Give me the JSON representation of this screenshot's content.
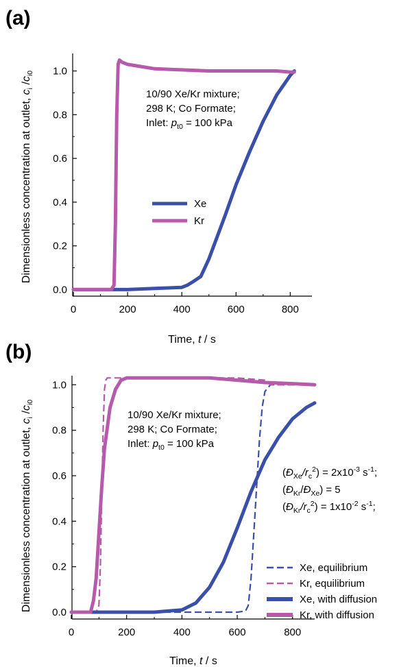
{
  "chart_data": [
    {
      "type": "line",
      "panel_label": "(a)",
      "xlabel_prefix": "Time, ",
      "xlabel_var": "t",
      "xlabel_suffix": " / s",
      "ylabel_prefix": "Dimensionless concentration at outlet, ",
      "ylabel_num": "c",
      "ylabel_num_sub": "i",
      "ylabel_den": "c",
      "ylabel_den_sub": "i0",
      "xlim": [
        0,
        880
      ],
      "ylim": [
        -0.03,
        1.08
      ],
      "xticks": [
        "0",
        "200",
        "400",
        "600",
        "800"
      ],
      "yticks": [
        "0.0",
        "0.2",
        "0.4",
        "0.6",
        "0.8",
        "1.0"
      ],
      "annotation": {
        "line1": "10/90 Xe/Kr mixture;",
        "line2": "298 K; Co Formate;",
        "line3_prefix": "Inlet: ",
        "line3_var": "p",
        "line3_sub": "t0",
        "line3_suffix": " = 100 kPa"
      },
      "series": [
        {
          "name": "Xe",
          "color": "#3a4fa8",
          "style": "solid",
          "x": [
            0,
            150,
            200,
            300,
            400,
            420,
            440,
            470,
            500,
            530,
            560,
            600,
            650,
            700,
            750,
            800,
            815
          ],
          "y": [
            0,
            0,
            0.0,
            0.005,
            0.01,
            0.02,
            0.035,
            0.06,
            0.14,
            0.24,
            0.34,
            0.48,
            0.63,
            0.77,
            0.89,
            0.98,
            1.0
          ]
        },
        {
          "name": "Kr",
          "color": "#b65aab",
          "style": "solid",
          "x": [
            0,
            140,
            150,
            155,
            160,
            165,
            170,
            180,
            200,
            250,
            300,
            400,
            500,
            600,
            700,
            750,
            800,
            815
          ],
          "y": [
            0,
            0,
            0.02,
            0.3,
            0.8,
            1.03,
            1.05,
            1.04,
            1.03,
            1.02,
            1.01,
            1.005,
            1.0,
            1.0,
            1.0,
            1.0,
            0.995,
            0.995
          ]
        }
      ]
    },
    {
      "type": "line",
      "panel_label": "(b)",
      "xlabel_prefix": "Time, ",
      "xlabel_var": "t",
      "xlabel_suffix": " / s",
      "ylabel_prefix": "Dimensionless concentration at outlet, ",
      "ylabel_num": "c",
      "ylabel_num_sub": "i",
      "ylabel_den": "c",
      "ylabel_den_sub": "i0",
      "xlim": [
        0,
        880
      ],
      "ylim": [
        -0.03,
        1.04
      ],
      "xticks": [
        "0",
        "200",
        "400",
        "600",
        "800"
      ],
      "yticks": [
        "0.0",
        "0.2",
        "0.4",
        "0.6",
        "0.8",
        "1.0"
      ],
      "annotation": {
        "line1": "10/90 Xe/Kr mixture;",
        "line2": "298 K; Co Formate;",
        "line3_prefix": "Inlet: ",
        "line3_var": "p",
        "line3_sub": "t0",
        "line3_suffix": " = 100 kPa"
      },
      "params": {
        "p1_var": "Đ",
        "p1_sub": "Xe",
        "p1_den": "/r",
        "p1_den_sub": "c",
        "p1_exp": "2",
        "p1_val": ") = 2x10",
        "p1_val_exp": "-3",
        "p1_unit": " s",
        "p1_unit_exp": "-1",
        "p1_end": ";",
        "p2_var": "Đ",
        "p2_sub": "Kr",
        "p2_mid": "/",
        "p2_var2": "Đ",
        "p2_sub2": "Xe",
        "p2_val": ") = 5",
        "p3_var": "Đ",
        "p3_sub": "Kr",
        "p3_den": "/r",
        "p3_den_sub": "c",
        "p3_exp": "2",
        "p3_val": ") = 1x10",
        "p3_val_exp": "-2",
        "p3_unit": " s",
        "p3_unit_exp": "-1",
        "p3_end": ";"
      },
      "series": [
        {
          "name": "Xe, equilibrium",
          "color": "#3a4fa8",
          "style": "dashed",
          "x": [
            0,
            600,
            630,
            640,
            650,
            660,
            670,
            680,
            690,
            700,
            720,
            800,
            880
          ],
          "y": [
            0,
            0,
            0.005,
            0.03,
            0.15,
            0.35,
            0.55,
            0.75,
            0.9,
            0.97,
            1.0,
            1.0,
            1.0
          ]
        },
        {
          "name": "Kr, equilibrium",
          "color": "#b65aab",
          "style": "dashed",
          "x": [
            0,
            90,
            100,
            105,
            110,
            115,
            120,
            125,
            130,
            300,
            600,
            700,
            720,
            800,
            880
          ],
          "y": [
            0,
            0,
            0.03,
            0.2,
            0.5,
            0.8,
            0.98,
            1.02,
            1.03,
            1.03,
            1.03,
            1.02,
            1.0,
            1.0,
            1.0
          ]
        },
        {
          "name": "Xe, with diffusion",
          "color": "#3a4fa8",
          "style": "solid",
          "x": [
            0,
            300,
            400,
            450,
            500,
            550,
            600,
            650,
            700,
            750,
            800,
            850,
            880
          ],
          "y": [
            0,
            0,
            0.01,
            0.04,
            0.11,
            0.22,
            0.37,
            0.53,
            0.67,
            0.77,
            0.85,
            0.9,
            0.92
          ]
        },
        {
          "name": "Kr, with diffusion",
          "color": "#b65aab",
          "style": "solid",
          "x": [
            0,
            70,
            80,
            90,
            100,
            110,
            120,
            140,
            160,
            180,
            200,
            250,
            300,
            400,
            500,
            600,
            700,
            800,
            880
          ],
          "y": [
            0,
            0,
            0.05,
            0.15,
            0.35,
            0.55,
            0.72,
            0.9,
            0.98,
            1.02,
            1.03,
            1.03,
            1.03,
            1.03,
            1.03,
            1.02,
            1.01,
            1.005,
            1.0
          ]
        }
      ]
    }
  ]
}
